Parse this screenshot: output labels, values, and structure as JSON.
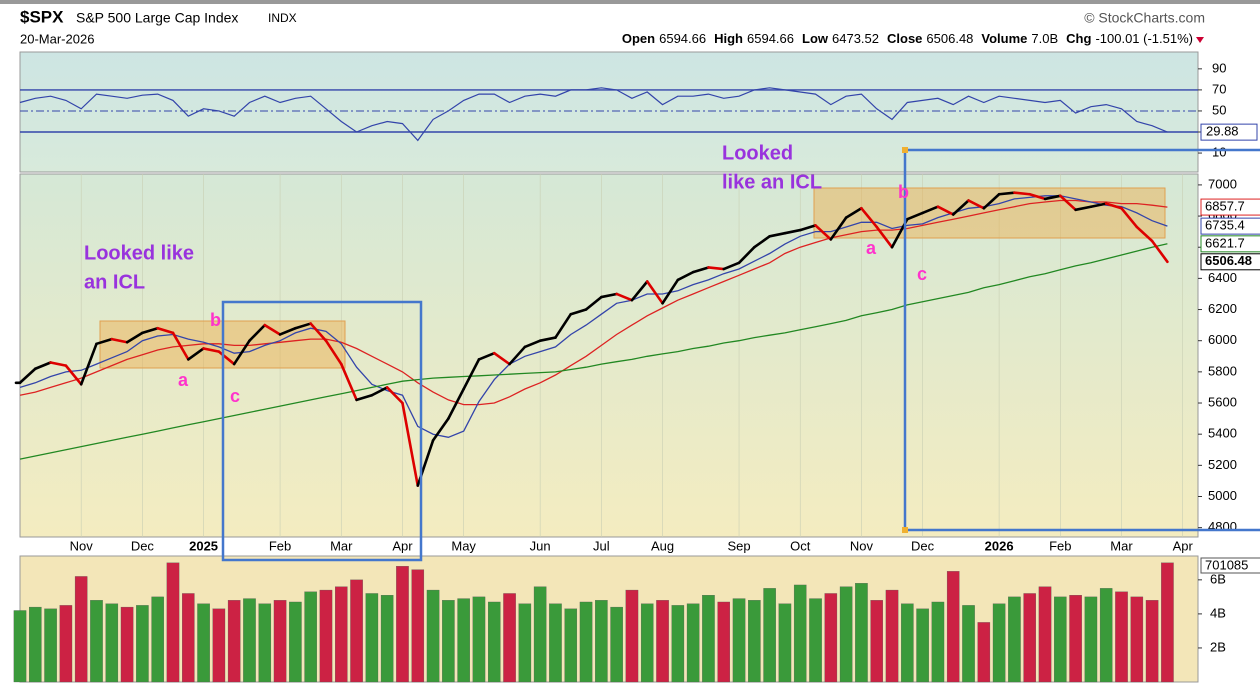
{
  "chart_data": {
    "type": "stock",
    "title": "$SPX",
    "subtitle": "S&P 500 Large Cap Index",
    "exchange": "INDX",
    "source": "© StockCharts.com",
    "date": "20-Mar-2026",
    "quote": [
      {
        "label": "Open",
        "text": "6594.66"
      },
      {
        "label": "High",
        "text": "6594.66"
      },
      {
        "label": "Low",
        "text": "6473.52"
      },
      {
        "label": "Close",
        "text": "6506.48"
      },
      {
        "label": "Volume",
        "text": "7.0B"
      },
      {
        "label": "Chg",
        "text": "-100.01 (-1.51%)"
      }
    ],
    "categories": [
      null,
      null,
      null,
      null,
      "Nov",
      null,
      null,
      null,
      "Dec",
      null,
      null,
      null,
      "2025",
      null,
      null,
      null,
      null,
      "Feb",
      null,
      null,
      null,
      "Mar",
      null,
      null,
      null,
      "Apr",
      null,
      null,
      null,
      "May",
      null,
      null,
      null,
      null,
      "Jun",
      null,
      null,
      null,
      "Jul",
      null,
      null,
      null,
      "Aug",
      null,
      null,
      null,
      null,
      "Sep",
      null,
      null,
      null,
      "Oct",
      null,
      null,
      null,
      "Nov",
      null,
      null,
      null,
      "Dec",
      null,
      null,
      null,
      null,
      "2026",
      null,
      null,
      null,
      "Feb",
      null,
      null,
      null,
      "Mar",
      null,
      null,
      null,
      "Apr",
      null
    ],
    "rsi": {
      "ylim": [
        -8,
        106
      ],
      "yticks": [
        90,
        70,
        50,
        30,
        10
      ],
      "color": "#3344aa",
      "values": [
        58,
        62,
        64,
        60,
        52,
        66,
        64,
        62,
        65,
        66,
        60,
        45,
        52,
        50,
        45,
        58,
        64,
        58,
        62,
        64,
        52,
        40,
        30,
        36,
        40,
        38,
        22,
        42,
        50,
        60,
        66,
        66,
        58,
        64,
        66,
        64,
        70,
        70,
        72,
        70,
        62,
        68,
        56,
        64,
        64,
        66,
        62,
        64,
        70,
        72,
        70,
        68,
        66,
        56,
        64,
        66,
        52,
        42,
        58,
        60,
        62,
        56,
        64,
        58,
        64,
        62,
        60,
        58,
        60,
        48,
        54,
        56,
        52,
        40,
        36,
        29.88,
        null,
        null
      ]
    },
    "price": {
      "ylim": [
        4740,
        7070
      ],
      "yticks": [
        4800,
        5000,
        5200,
        5400,
        5600,
        5800,
        6000,
        6200,
        6400,
        6600,
        6800,
        7000
      ],
      "up_color": "#000000",
      "down_color": "#dd0000",
      "values": [
        5730,
        5820,
        5860,
        5840,
        5720,
        5980,
        6010,
        5990,
        6050,
        6080,
        6050,
        5880,
        5950,
        5930,
        5850,
        6000,
        6100,
        6040,
        6080,
        6110,
        6000,
        5850,
        5620,
        5650,
        5700,
        5600,
        5070,
        5360,
        5500,
        5690,
        5880,
        5920,
        5850,
        5960,
        6000,
        6020,
        6170,
        6200,
        6280,
        6300,
        6260,
        6380,
        6240,
        6390,
        6440,
        6470,
        6460,
        6500,
        6600,
        6670,
        6690,
        6710,
        6740,
        6650,
        6790,
        6850,
        6730,
        6600,
        6780,
        6820,
        6860,
        6810,
        6900,
        6850,
        6940,
        6950,
        6940,
        6910,
        6930,
        6840,
        6860,
        6880,
        6850,
        6730,
        6640,
        6506.48,
        null,
        null
      ],
      "ma": [
        {
          "color": "#dd2222",
          "values": [
            5650,
            5670,
            5700,
            5730,
            5760,
            5800,
            5840,
            5880,
            5910,
            5940,
            5960,
            5970,
            5980,
            5980,
            5970,
            5970,
            5980,
            5990,
            6000,
            6010,
            6010,
            5990,
            5950,
            5900,
            5850,
            5800,
            5730,
            5670,
            5620,
            5590,
            5590,
            5600,
            5640,
            5690,
            5730,
            5780,
            5840,
            5900,
            5970,
            6040,
            6100,
            6160,
            6210,
            6260,
            6300,
            6340,
            6380,
            6420,
            6460,
            6500,
            6560,
            6600,
            6630,
            6660,
            6680,
            6700,
            6710,
            6710,
            6720,
            6740,
            6760,
            6780,
            6800,
            6820,
            6840,
            6860,
            6880,
            6890,
            6900,
            6900,
            6890,
            6890,
            6880,
            6880,
            6870,
            6857.7,
            null,
            null
          ]
        },
        {
          "color": "#3344aa",
          "values": [
            5700,
            5730,
            5770,
            5800,
            5810,
            5850,
            5890,
            5930,
            6000,
            6030,
            6040,
            6010,
            5990,
            5960,
            5920,
            5930,
            5970,
            6000,
            6050,
            6080,
            6060,
            5980,
            5830,
            5720,
            5680,
            5650,
            5450,
            5400,
            5380,
            5420,
            5610,
            5750,
            5850,
            5900,
            5930,
            5960,
            6040,
            6100,
            6170,
            6240,
            6260,
            6300,
            6300,
            6320,
            6360,
            6390,
            6430,
            6460,
            6510,
            6560,
            6620,
            6670,
            6700,
            6700,
            6730,
            6760,
            6760,
            6720,
            6740,
            6750,
            6790,
            6820,
            6850,
            6860,
            6880,
            6910,
            6920,
            6930,
            6930,
            6910,
            6890,
            6870,
            6860,
            6820,
            6770,
            6735.4,
            null,
            null
          ]
        },
        {
          "color": "#228822",
          "values": [
            5240,
            5260,
            5280,
            5300,
            5320,
            5340,
            5360,
            5380,
            5400,
            5420,
            5440,
            5460,
            5480,
            5500,
            5520,
            5540,
            5560,
            5580,
            5600,
            5620,
            5640,
            5660,
            5680,
            5700,
            5720,
            5740,
            5750,
            5760,
            5765,
            5770,
            5775,
            5780,
            5785,
            5790,
            5795,
            5800,
            5815,
            5830,
            5850,
            5865,
            5880,
            5900,
            5915,
            5930,
            5950,
            5965,
            5985,
            6000,
            6020,
            6035,
            6050,
            6070,
            6090,
            6110,
            6130,
            6160,
            6180,
            6200,
            6230,
            6250,
            6270,
            6290,
            6310,
            6340,
            6360,
            6385,
            6410,
            6430,
            6455,
            6480,
            6500,
            6525,
            6550,
            6575,
            6600,
            6621.7,
            null,
            null
          ]
        }
      ],
      "annotations": [
        "Looked like",
        "an ICL",
        "a",
        "b",
        "c",
        "Looked",
        "like an ICL",
        "a",
        "b",
        "c"
      ]
    },
    "volume": {
      "ylim": [
        0,
        7.4
      ],
      "yticks": [
        {
          "value": 2,
          "label": "2B"
        },
        {
          "value": 4,
          "label": "4B"
        },
        {
          "value": 6,
          "label": "6B"
        }
      ],
      "current_label": "701085",
      "up_color": "#3a9a3a",
      "down_color": "#cc2244",
      "values": [
        4.2,
        4.4,
        4.3,
        4.5,
        6.2,
        4.8,
        4.6,
        4.4,
        4.5,
        5.0,
        7.0,
        5.2,
        4.6,
        4.3,
        4.8,
        4.9,
        4.6,
        4.8,
        4.7,
        5.3,
        5.4,
        5.6,
        6.0,
        5.2,
        5.1,
        6.8,
        6.6,
        5.4,
        4.8,
        4.9,
        5.0,
        4.7,
        5.2,
        4.6,
        5.6,
        4.6,
        4.3,
        4.7,
        4.8,
        4.4,
        5.4,
        4.6,
        4.8,
        4.5,
        4.6,
        5.1,
        4.7,
        4.9,
        4.8,
        5.5,
        4.6,
        5.7,
        4.9,
        5.2,
        5.6,
        5.8,
        4.8,
        5.4,
        4.6,
        4.3,
        4.7,
        6.5,
        4.5,
        3.5,
        4.6,
        5.0,
        5.2,
        5.6,
        5.0,
        5.1,
        5.0,
        5.5,
        5.3,
        5.0,
        4.8,
        7.0,
        null,
        null
      ]
    }
  }
}
